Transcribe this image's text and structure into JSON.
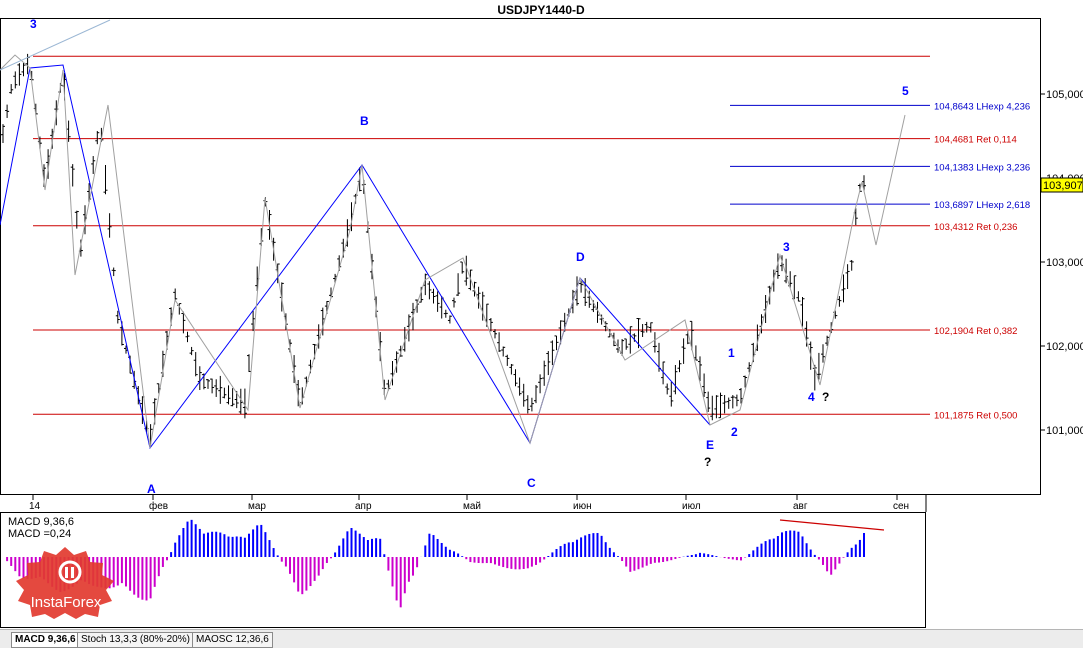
{
  "window_title": "USDJPY1440-D",
  "price_label": "103,907",
  "colors": {
    "bear": "#000000",
    "wave": "#0000ff",
    "ret": "#cc0000",
    "ext": "#0000cc",
    "macd_pos": "#0000ff",
    "macd_neg": "#cc00cc",
    "macd_trend": "#cc0000"
  },
  "chart_data": {
    "type": "candlestick",
    "title": "USDJPY1440-D",
    "y_ticks": [
      "105,000",
      "104,000",
      "103,000",
      "102,000",
      "101,000"
    ],
    "x_ticks": [
      "14",
      "фев",
      "мар",
      "апр",
      "май",
      "июн",
      "июл",
      "авг",
      "сен"
    ],
    "levels": [
      {
        "label": "104,8643 LHexp 4,236",
        "value": 104.8643,
        "kind": "ext"
      },
      {
        "label": "104,4681 Ret 0,114",
        "value": 104.4681,
        "kind": "ret"
      },
      {
        "label": "104,1383 LHexp 3,236",
        "value": 104.1383,
        "kind": "ext"
      },
      {
        "label": "103,6897 LHexp 2,618",
        "value": 103.6897,
        "kind": "ext"
      },
      {
        "label": "103,4312 Ret 0,236",
        "value": 103.4312,
        "kind": "ret"
      },
      {
        "label": "102,1904 Ret 0,382",
        "value": 102.1904,
        "kind": "ret"
      },
      {
        "label": "101,1875 Ret 0,500",
        "value": 101.1875,
        "kind": "ret"
      }
    ],
    "top_line": 105.45,
    "wave_labels_major": [
      "3",
      "A",
      "B",
      "C",
      "D",
      "E",
      "5",
      "3",
      "1",
      "2",
      "4"
    ],
    "question_marks": [
      "?",
      "?"
    ],
    "macd_label": "MACD 9,36,6",
    "macd_value": "MACD =0,24"
  },
  "tabs": [
    "MACD 9,36,6",
    "Stoch 13,3,3 (80%-20%)",
    "MAOSC 12,36,6"
  ],
  "logo_text": "InstaForex"
}
